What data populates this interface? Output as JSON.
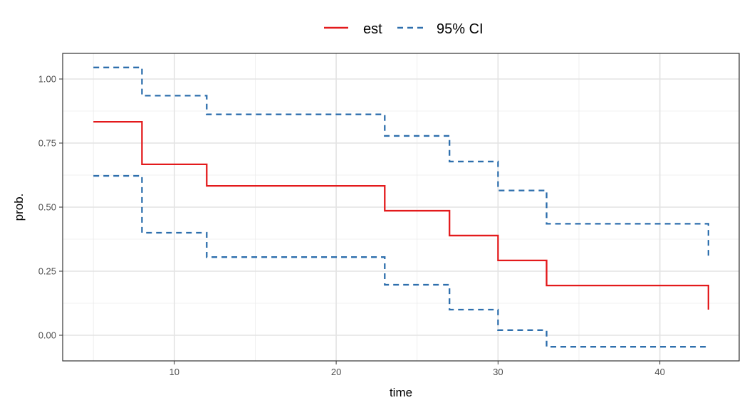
{
  "chart_data": {
    "type": "line",
    "title": "",
    "xlabel": "time",
    "ylabel": "prob.",
    "xlim": [
      3.1,
      44.9
    ],
    "ylim": [
      -0.1,
      1.1
    ],
    "x_ticks": [
      10,
      20,
      30,
      40
    ],
    "x_tick_labels": [
      "10",
      "20",
      "30",
      "40"
    ],
    "y_ticks": [
      0,
      0.25,
      0.5,
      0.75,
      1.0
    ],
    "y_tick_labels": [
      "0.00",
      "0.25",
      "0.50",
      "0.75",
      "1.00"
    ],
    "grid": true,
    "legend_position": "top",
    "step": true,
    "series": [
      {
        "name": "est",
        "color": "#e31a1c",
        "dash": "solid",
        "x": [
          5,
          8,
          12,
          23,
          27,
          30,
          33,
          43,
          43
        ],
        "y": [
          0.833,
          0.667,
          0.583,
          0.486,
          0.389,
          0.292,
          0.194,
          0.194,
          0.1
        ]
      },
      {
        "name": "95% CI",
        "color": "#2e6fad",
        "dash": "dashed",
        "x": [
          5,
          8,
          12,
          23,
          27,
          30,
          33,
          43,
          43
        ],
        "y": [
          1.045,
          0.935,
          0.862,
          0.778,
          0.678,
          0.565,
          0.435,
          0.435,
          0.3
        ]
      },
      {
        "name": "95% CI",
        "color": "#2e6fad",
        "dash": "dashed",
        "x": [
          5,
          8,
          12,
          23,
          27,
          30,
          33,
          43,
          43
        ],
        "y": [
          0.622,
          0.4,
          0.305,
          0.197,
          0.1,
          0.02,
          -0.045,
          -0.045,
          -0.05
        ]
      }
    ],
    "legend": [
      {
        "label": "est",
        "color": "#e31a1c",
        "dash": "solid"
      },
      {
        "label": "95% CI",
        "color": "#2e6fad",
        "dash": "dashed"
      }
    ]
  }
}
